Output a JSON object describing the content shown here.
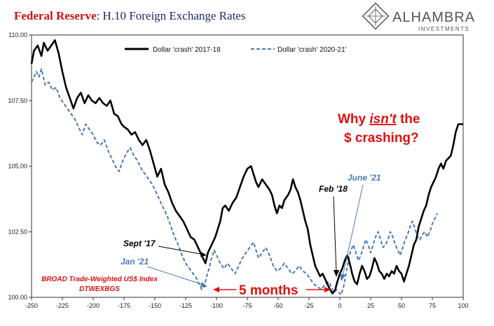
{
  "title": {
    "prefix": "Federal Reserve",
    "suffix": ": H.10 Foreign Exchange Rates"
  },
  "logo": {
    "name": "ALHAMBRA",
    "sub": "INVESTMENTS"
  },
  "colors": {
    "title_red": "#cc1111",
    "series_2017": "#000000",
    "series_2020": "#4a7ab5",
    "annot_red": "#e01010",
    "annot_blue": "#4a7ab5"
  },
  "annotations": {
    "why_line1_a": "Why ",
    "why_line1_b": "isn't",
    "why_line1_c": " the",
    "why_line2": "$ crashing?",
    "sept17": "Sept '17",
    "jan21": "Jan '21",
    "feb18": "Feb '18",
    "june21": "June '21",
    "five_months": "5 months",
    "source_line1": "BROAD Trade-Weighted US$ Index",
    "source_line2": "DTWEXBGS"
  },
  "chart_data": {
    "type": "line",
    "xlim": [
      -250,
      100
    ],
    "ylim": [
      100,
      110
    ],
    "x_ticks": [
      "-250",
      "-225",
      "-200",
      "-175",
      "-150",
      "-125",
      "-100",
      "-75",
      "-50",
      "-25",
      "0",
      "25",
      "50",
      "75",
      "100"
    ],
    "y_ticks": [
      "100.00",
      "102.50",
      "105.00",
      "107.50",
      "110.00"
    ],
    "series": [
      {
        "name": "Dollar 'crash' 2017-18",
        "style": "solid",
        "points": [
          [
            -250,
            108.9
          ],
          [
            -248,
            109.4
          ],
          [
            -245,
            109.6
          ],
          [
            -242,
            109.2
          ],
          [
            -240,
            109.7
          ],
          [
            -237,
            109.4
          ],
          [
            -234,
            109.6
          ],
          [
            -231,
            109.8
          ],
          [
            -228,
            109.3
          ],
          [
            -225,
            108.6
          ],
          [
            -222,
            108.0
          ],
          [
            -219,
            107.6
          ],
          [
            -216,
            107.2
          ],
          [
            -213,
            107.6
          ],
          [
            -210,
            107.8
          ],
          [
            -207,
            107.4
          ],
          [
            -204,
            107.7
          ],
          [
            -201,
            107.5
          ],
          [
            -198,
            107.4
          ],
          [
            -195,
            107.6
          ],
          [
            -192,
            107.4
          ],
          [
            -189,
            107.3
          ],
          [
            -186,
            107.5
          ],
          [
            -183,
            107.0
          ],
          [
            -180,
            106.9
          ],
          [
            -177,
            106.6
          ],
          [
            -175,
            106.5
          ],
          [
            -172,
            106.4
          ],
          [
            -169,
            106.2
          ],
          [
            -166,
            106.3
          ],
          [
            -163,
            106.0
          ],
          [
            -160,
            105.8
          ],
          [
            -157,
            106.0
          ],
          [
            -154,
            105.6
          ],
          [
            -151,
            105.1
          ],
          [
            -148,
            104.6
          ],
          [
            -145,
            104.9
          ],
          [
            -142,
            104.3
          ],
          [
            -139,
            104.0
          ],
          [
            -136,
            103.6
          ],
          [
            -133,
            103.3
          ],
          [
            -130,
            103.1
          ],
          [
            -127,
            102.9
          ],
          [
            -124,
            102.6
          ],
          [
            -121,
            102.3
          ],
          [
            -118,
            102.2
          ],
          [
            -115,
            101.9
          ],
          [
            -113,
            101.7
          ],
          [
            -111,
            101.5
          ],
          [
            -109,
            101.3
          ],
          [
            -107,
            101.7
          ],
          [
            -105,
            101.9
          ],
          [
            -103,
            102.1
          ],
          [
            -101,
            102.3
          ],
          [
            -99,
            102.6
          ],
          [
            -97,
            102.9
          ],
          [
            -95,
            103.4
          ],
          [
            -93,
            103.5
          ],
          [
            -90,
            103.3
          ],
          [
            -87,
            103.6
          ],
          [
            -84,
            103.8
          ],
          [
            -81,
            104.2
          ],
          [
            -78,
            104.6
          ],
          [
            -75,
            104.9
          ],
          [
            -72,
            105.0
          ],
          [
            -70,
            104.7
          ],
          [
            -68,
            104.4
          ],
          [
            -66,
            104.2
          ],
          [
            -63,
            104.5
          ],
          [
            -60,
            104.3
          ],
          [
            -57,
            104.1
          ],
          [
            -55,
            103.9
          ],
          [
            -53,
            103.5
          ],
          [
            -51,
            103.2
          ],
          [
            -49,
            103.5
          ],
          [
            -47,
            103.4
          ],
          [
            -45,
            103.7
          ],
          [
            -42,
            103.9
          ],
          [
            -40,
            104.1
          ],
          [
            -38,
            104.5
          ],
          [
            -36,
            104.2
          ],
          [
            -34,
            104.0
          ],
          [
            -32,
            103.7
          ],
          [
            -30,
            103.3
          ],
          [
            -28,
            102.9
          ],
          [
            -26,
            102.6
          ],
          [
            -24,
            102.0
          ],
          [
            -22,
            101.6
          ],
          [
            -20,
            101.2
          ],
          [
            -18,
            101.0
          ],
          [
            -16,
            100.8
          ],
          [
            -14,
            100.9
          ],
          [
            -12,
            100.7
          ],
          [
            -10,
            100.5
          ],
          [
            -8,
            100.3
          ],
          [
            -6,
            100.15
          ],
          [
            -4,
            100.25
          ],
          [
            -2,
            100.6
          ],
          [
            0,
            100.9
          ],
          [
            2,
            101.1
          ],
          [
            4,
            101.4
          ],
          [
            6,
            101.6
          ],
          [
            8,
            101.3
          ],
          [
            10,
            100.9
          ],
          [
            12,
            100.6
          ],
          [
            14,
            100.5
          ],
          [
            16,
            100.9
          ],
          [
            18,
            101.2
          ],
          [
            20,
            101.0
          ],
          [
            22,
            100.7
          ],
          [
            24,
            100.8
          ],
          [
            26,
            101.1
          ],
          [
            28,
            101.5
          ],
          [
            30,
            101.3
          ],
          [
            32,
            101.0
          ],
          [
            34,
            100.9
          ],
          [
            36,
            100.7
          ],
          [
            38,
            100.9
          ],
          [
            40,
            100.8
          ],
          [
            42,
            101.0
          ],
          [
            44,
            100.9
          ],
          [
            46,
            101.2
          ],
          [
            48,
            101.0
          ],
          [
            50,
            100.9
          ],
          [
            52,
            100.6
          ],
          [
            54,
            100.9
          ],
          [
            56,
            101.2
          ],
          [
            58,
            101.6
          ],
          [
            60,
            102.0
          ],
          [
            62,
            102.2
          ],
          [
            64,
            102.7
          ],
          [
            66,
            103.0
          ],
          [
            68,
            103.3
          ],
          [
            70,
            103.5
          ],
          [
            72,
            103.9
          ],
          [
            74,
            104.2
          ],
          [
            76,
            104.4
          ],
          [
            78,
            104.6
          ],
          [
            80,
            104.9
          ],
          [
            82,
            105.1
          ],
          [
            84,
            104.9
          ],
          [
            86,
            105.2
          ],
          [
            88,
            105.3
          ],
          [
            90,
            105.4
          ],
          [
            92,
            105.8
          ],
          [
            94,
            106.3
          ],
          [
            96,
            106.6
          ],
          [
            98,
            106.6
          ],
          [
            100,
            106.6
          ]
        ]
      },
      {
        "name": "Dollar 'crash' 2020-21'",
        "style": "dashed",
        "points": [
          [
            -250,
            108.2
          ],
          [
            -248,
            108.4
          ],
          [
            -246,
            108.6
          ],
          [
            -244,
            108.4
          ],
          [
            -242,
            108.7
          ],
          [
            -239,
            108.1
          ],
          [
            -236,
            108.2
          ],
          [
            -233,
            107.9
          ],
          [
            -230,
            108.0
          ],
          [
            -227,
            107.6
          ],
          [
            -224,
            107.4
          ],
          [
            -221,
            107.2
          ],
          [
            -218,
            107.0
          ],
          [
            -215,
            106.8
          ],
          [
            -212,
            106.5
          ],
          [
            -209,
            106.2
          ],
          [
            -206,
            106.6
          ],
          [
            -203,
            106.4
          ],
          [
            -200,
            106.2
          ],
          [
            -197,
            105.9
          ],
          [
            -194,
            105.8
          ],
          [
            -191,
            106.0
          ],
          [
            -188,
            105.6
          ],
          [
            -185,
            105.3
          ],
          [
            -182,
            105.0
          ],
          [
            -179,
            104.8
          ],
          [
            -176,
            105.2
          ],
          [
            -173,
            105.5
          ],
          [
            -170,
            105.7
          ],
          [
            -167,
            105.4
          ],
          [
            -164,
            105.2
          ],
          [
            -161,
            104.9
          ],
          [
            -158,
            104.7
          ],
          [
            -155,
            104.5
          ],
          [
            -152,
            104.3
          ],
          [
            -149,
            104.0
          ],
          [
            -146,
            103.7
          ],
          [
            -143,
            103.4
          ],
          [
            -140,
            103.1
          ],
          [
            -137,
            102.7
          ],
          [
            -134,
            102.3
          ],
          [
            -131,
            102.0
          ],
          [
            -128,
            101.6
          ],
          [
            -125,
            101.3
          ],
          [
            -122,
            101.1
          ],
          [
            -119,
            100.9
          ],
          [
            -116,
            100.7
          ],
          [
            -114,
            100.5
          ],
          [
            -112,
            100.3
          ],
          [
            -110,
            100.4
          ],
          [
            -108,
            100.8
          ],
          [
            -106,
            101.1
          ],
          [
            -104,
            101.5
          ],
          [
            -102,
            101.8
          ],
          [
            -100,
            101.6
          ],
          [
            -97,
            101.3
          ],
          [
            -94,
            101.1
          ],
          [
            -91,
            101.3
          ],
          [
            -88,
            101.1
          ],
          [
            -85,
            100.9
          ],
          [
            -82,
            101.2
          ],
          [
            -79,
            101.5
          ],
          [
            -76,
            101.7
          ],
          [
            -73,
            101.9
          ],
          [
            -70,
            102.1
          ],
          [
            -68,
            101.8
          ],
          [
            -66,
            101.5
          ],
          [
            -63,
            101.7
          ],
          [
            -60,
            101.9
          ],
          [
            -57,
            101.6
          ],
          [
            -54,
            101.2
          ],
          [
            -51,
            101.0
          ],
          [
            -48,
            101.1
          ],
          [
            -45,
            101.3
          ],
          [
            -42,
            101.1
          ],
          [
            -39,
            100.9
          ],
          [
            -36,
            101.0
          ],
          [
            -33,
            101.2
          ],
          [
            -30,
            101.0
          ],
          [
            -27,
            100.9
          ],
          [
            -24,
            100.7
          ],
          [
            -21,
            100.5
          ],
          [
            -18,
            100.4
          ],
          [
            -15,
            100.3
          ],
          [
            -12,
            100.5
          ],
          [
            -9,
            100.6
          ],
          [
            -7,
            100.4
          ],
          [
            -5,
            100.2
          ],
          [
            -3,
            100.3
          ],
          [
            -1,
            100.2
          ],
          [
            1,
            100.1
          ],
          [
            3,
            100.4
          ],
          [
            5,
            100.9
          ],
          [
            7,
            101.4
          ],
          [
            9,
            101.8
          ],
          [
            11,
            102.0
          ],
          [
            13,
            101.7
          ],
          [
            15,
            101.4
          ],
          [
            17,
            101.6
          ],
          [
            19,
            101.9
          ],
          [
            21,
            102.2
          ],
          [
            23,
            102.0
          ],
          [
            25,
            101.7
          ],
          [
            27,
            102.0
          ],
          [
            29,
            102.3
          ],
          [
            31,
            102.5
          ],
          [
            33,
            102.2
          ],
          [
            35,
            101.9
          ],
          [
            37,
            102.0
          ],
          [
            39,
            102.2
          ],
          [
            41,
            102.5
          ],
          [
            43,
            102.3
          ],
          [
            45,
            102.0
          ],
          [
            47,
            101.8
          ],
          [
            49,
            101.6
          ],
          [
            51,
            101.9
          ],
          [
            53,
            102.2
          ],
          [
            55,
            102.4
          ],
          [
            57,
            102.7
          ],
          [
            59,
            102.9
          ],
          [
            61,
            102.6
          ],
          [
            63,
            102.3
          ],
          [
            65,
            102.2
          ],
          [
            67,
            102.4
          ],
          [
            69,
            102.5
          ],
          [
            71,
            102.3
          ],
          [
            73,
            102.5
          ],
          [
            75,
            102.8
          ],
          [
            77,
            103.0
          ],
          [
            79,
            103.2
          ]
        ]
      }
    ]
  }
}
